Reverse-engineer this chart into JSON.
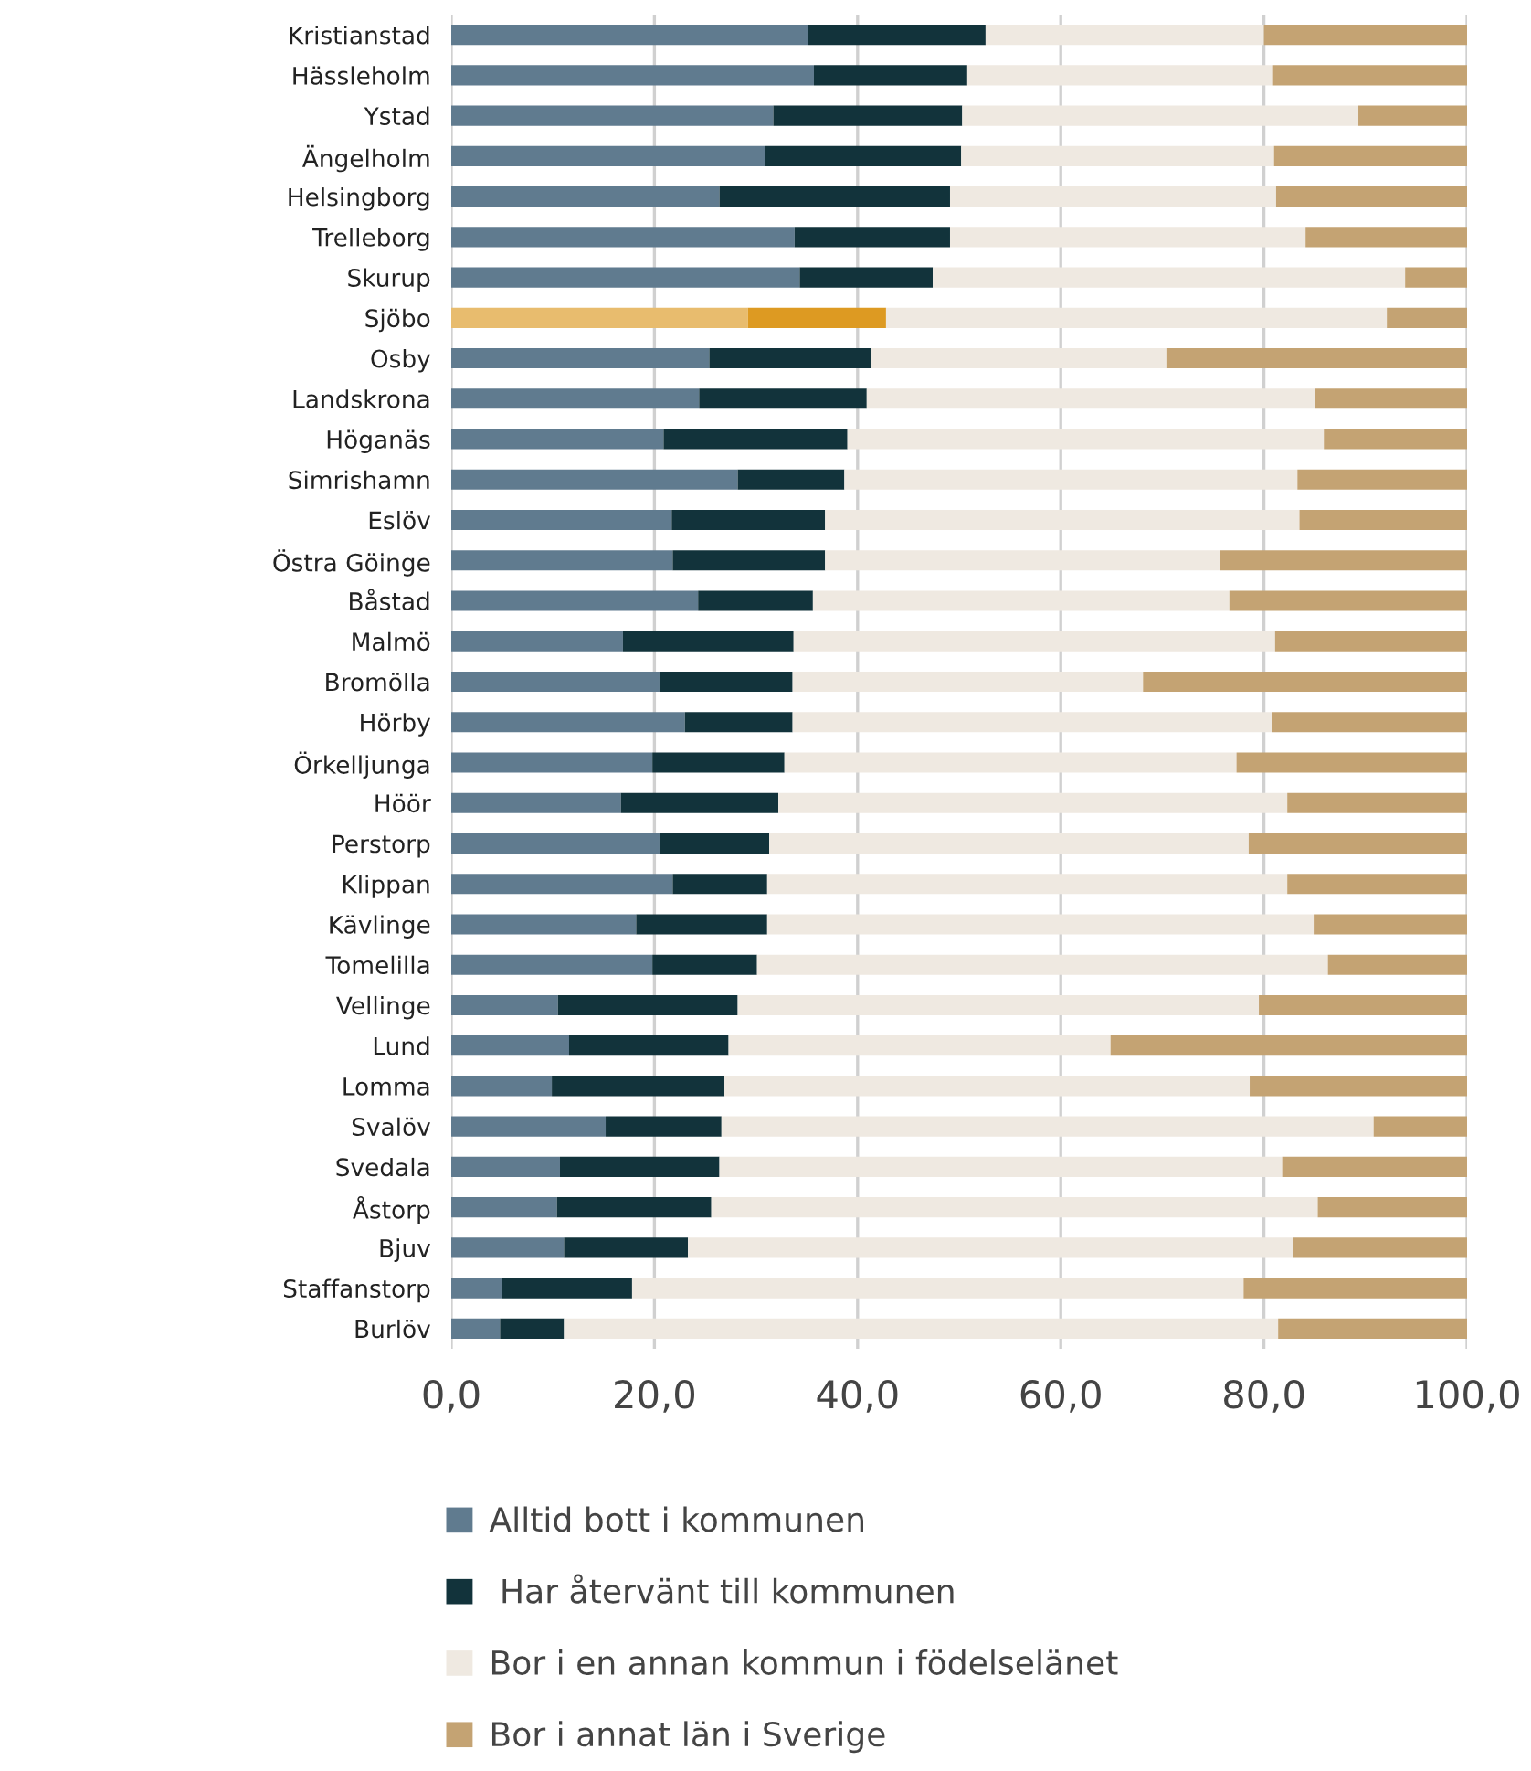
{
  "chart_data": {
    "type": "bar",
    "orientation": "horizontal",
    "stacked": true,
    "grid": "x",
    "legend": "bottom",
    "categories": [
      "Kristianstad",
      "Hässleholm",
      "Ystad",
      "Ängelholm",
      "Helsingborg",
      "Trelleborg",
      "Skurup",
      "Sjöbo",
      "Osby",
      "Landskrona",
      "Höganäs",
      "Simrishamn",
      "Eslöv",
      "Östra Göinge",
      "Båstad",
      "Malmö",
      "Bromölla",
      "Hörby",
      "Örkelljunga",
      "Höör",
      "Perstorp",
      "Klippan",
      "Kävlinge",
      "Tomelilla",
      "Vellinge",
      "Lund",
      "Lomma",
      "Svalöv",
      "Svedala",
      "Åstorp",
      "Bjuv",
      "Staffanstorp",
      "Burlöv"
    ],
    "xlim": [
      0,
      100
    ],
    "xticks": [
      {
        "value": 0,
        "label": "0,0"
      },
      {
        "value": 20,
        "label": "20,0"
      },
      {
        "value": 40,
        "label": "40,0"
      },
      {
        "value": 60,
        "label": "60,0"
      },
      {
        "value": 80,
        "label": "80,0"
      },
      {
        "value": 100,
        "label": "100,0"
      }
    ],
    "series": [
      {
        "name": "Alltid bott i kommunen",
        "color": "#607b8f",
        "colors": [
          "#607b8f",
          "#607b8f",
          "#607b8f",
          "#607b8f",
          "#607b8f",
          "#607b8f",
          "#607b8f",
          "#e8bc6e",
          "#607b8f",
          "#607b8f",
          "#607b8f",
          "#607b8f",
          "#607b8f",
          "#607b8f",
          "#607b8f",
          "#607b8f",
          "#607b8f",
          "#607b8f",
          "#607b8f",
          "#607b8f",
          "#607b8f",
          "#607b8f",
          "#607b8f",
          "#607b8f",
          "#607b8f",
          "#607b8f",
          "#607b8f",
          "#607b8f",
          "#607b8f",
          "#607b8f",
          "#607b8f",
          "#607b8f",
          "#607b8f"
        ],
        "values": [
          35.1,
          35.7,
          31.7,
          30.9,
          26.4,
          33.8,
          34.3,
          29.2,
          25.4,
          24.4,
          20.9,
          28.2,
          21.7,
          21.8,
          24.3,
          16.9,
          20.5,
          23.0,
          19.8,
          16.7,
          20.5,
          21.8,
          18.2,
          19.8,
          10.5,
          11.6,
          9.9,
          15.2,
          10.7,
          10.4,
          11.1,
          5.0,
          4.8
        ]
      },
      {
        "name": " Har återvänt till kommunen",
        "color": "#12333b",
        "colors": [
          "#12333b",
          "#12333b",
          "#12333b",
          "#12333b",
          "#12333b",
          "#12333b",
          "#12333b",
          "#dd9a22",
          "#12333b",
          "#12333b",
          "#12333b",
          "#12333b",
          "#12333b",
          "#12333b",
          "#12333b",
          "#12333b",
          "#12333b",
          "#12333b",
          "#12333b",
          "#12333b",
          "#12333b",
          "#12333b",
          "#12333b",
          "#12333b",
          "#12333b",
          "#12333b",
          "#12333b",
          "#12333b",
          "#12333b",
          "#12333b",
          "#12333b",
          "#12333b",
          "#12333b"
        ],
        "values": [
          17.5,
          15.1,
          18.6,
          19.3,
          22.7,
          15.3,
          13.1,
          13.6,
          15.9,
          16.5,
          18.1,
          10.5,
          15.1,
          15.0,
          11.3,
          16.8,
          13.1,
          10.6,
          13.0,
          15.5,
          10.8,
          9.3,
          12.9,
          10.3,
          17.7,
          15.7,
          17.0,
          11.4,
          15.7,
          15.2,
          12.2,
          12.8,
          6.3
        ]
      },
      {
        "name": "Bor i en annan kommun i födelselänet",
        "color": "#efe9e1",
        "values": [
          27.4,
          30.1,
          39.0,
          30.8,
          32.1,
          35.0,
          46.5,
          49.3,
          29.1,
          44.1,
          46.9,
          44.6,
          46.7,
          38.9,
          41.0,
          47.4,
          34.5,
          47.2,
          44.5,
          50.1,
          47.2,
          51.2,
          53.8,
          56.2,
          51.3,
          37.6,
          51.7,
          64.2,
          55.4,
          59.7,
          59.6,
          60.2,
          70.3
        ]
      },
      {
        "name": "Bor i annat län i Sverige",
        "color": "#c4a373",
        "values": [
          20.0,
          19.1,
          10.7,
          19.0,
          18.8,
          15.9,
          6.1,
          7.9,
          29.6,
          15.0,
          14.1,
          16.7,
          16.5,
          24.3,
          23.4,
          18.9,
          31.9,
          19.2,
          22.7,
          17.7,
          21.5,
          17.7,
          15.1,
          13.7,
          20.5,
          35.1,
          21.4,
          9.2,
          18.2,
          14.7,
          17.1,
          22.0,
          18.6
        ]
      }
    ]
  }
}
